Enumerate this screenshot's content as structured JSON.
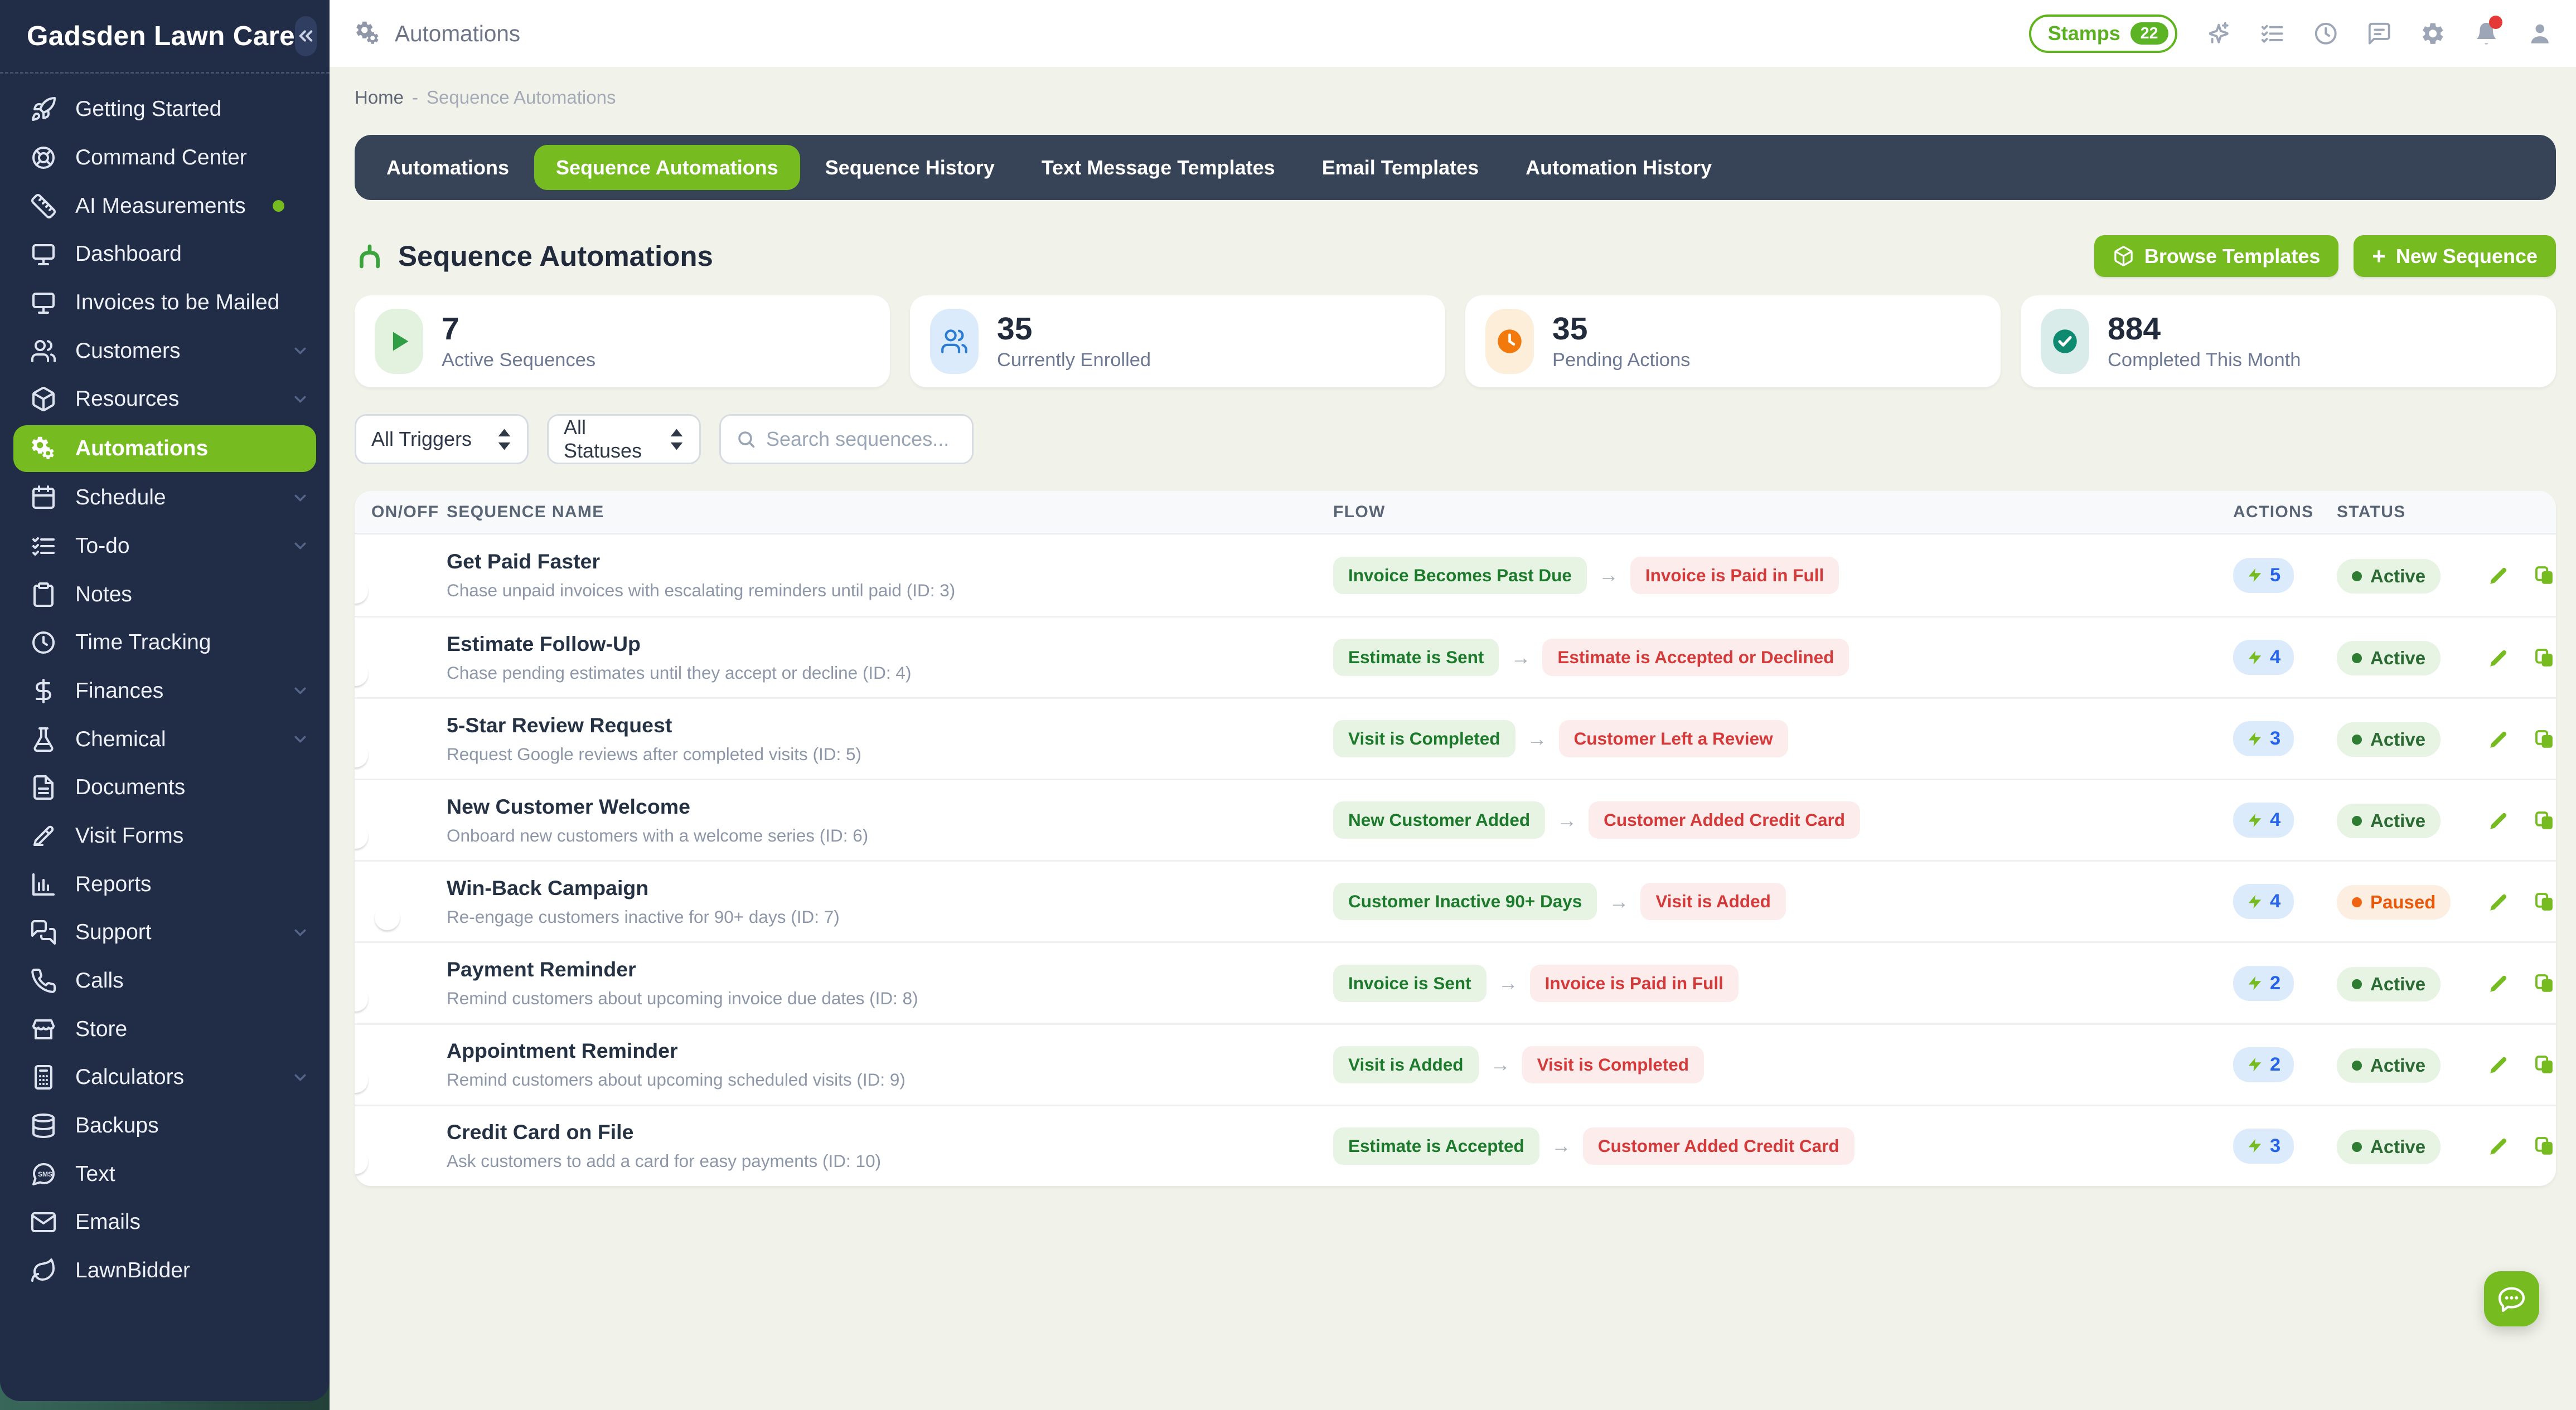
{
  "brand": {
    "name": "Gadsden Lawn Care"
  },
  "sidebar": {
    "items": [
      {
        "label": "Getting Started",
        "icon": "rocket-icon"
      },
      {
        "label": "Command Center",
        "icon": "lifebuoy-icon"
      },
      {
        "label": "AI Measurements",
        "icon": "ruler-icon",
        "dot": true
      },
      {
        "label": "Dashboard",
        "icon": "monitor-icon"
      },
      {
        "label": "Invoices to be Mailed",
        "icon": "monitor-icon"
      },
      {
        "label": "Customers",
        "icon": "users-icon",
        "chevron": true
      },
      {
        "label": "Resources",
        "icon": "box-icon",
        "chevron": true
      },
      {
        "label": "Automations",
        "icon": "gears-icon",
        "active": true
      },
      {
        "label": "Schedule",
        "icon": "calendar-icon",
        "chevron": true
      },
      {
        "label": "To-do",
        "icon": "checklist-icon",
        "chevron": true
      },
      {
        "label": "Notes",
        "icon": "clipboard-icon"
      },
      {
        "label": "Time Tracking",
        "icon": "clock-icon"
      },
      {
        "label": "Finances",
        "icon": "dollar-icon",
        "chevron": true
      },
      {
        "label": "Chemical",
        "icon": "flask-icon",
        "chevron": true
      },
      {
        "label": "Documents",
        "icon": "document-icon"
      },
      {
        "label": "Visit Forms",
        "icon": "visit-form-icon"
      },
      {
        "label": "Reports",
        "icon": "bar-chart-icon"
      },
      {
        "label": "Support",
        "icon": "support-chat-icon",
        "chevron": true
      },
      {
        "label": "Calls",
        "icon": "phone-icon"
      },
      {
        "label": "Store",
        "icon": "store-icon"
      },
      {
        "label": "Calculators",
        "icon": "calculator-icon",
        "chevron": true
      },
      {
        "label": "Backups",
        "icon": "database-icon"
      },
      {
        "label": "Text",
        "icon": "sms-icon"
      },
      {
        "label": "Emails",
        "icon": "envelope-icon"
      },
      {
        "label": "LawnBidder",
        "icon": "leaf-icon"
      }
    ]
  },
  "topbar": {
    "title": "Automations",
    "stamps": {
      "label": "Stamps",
      "count": "22"
    },
    "icons": [
      {
        "name": "sparkles-icon"
      },
      {
        "name": "checklist-icon"
      },
      {
        "name": "clock-icon"
      },
      {
        "name": "comment-icon"
      },
      {
        "name": "gear-icon"
      },
      {
        "name": "bell-icon",
        "badge": true
      },
      {
        "name": "user-icon"
      }
    ]
  },
  "breadcrumb": {
    "home": "Home",
    "separator": "-",
    "current": "Sequence Automations"
  },
  "tabs": [
    {
      "label": "Automations",
      "active": false
    },
    {
      "label": "Sequence Automations",
      "active": true
    },
    {
      "label": "Sequence History",
      "active": false
    },
    {
      "label": "Text Message Templates",
      "active": false
    },
    {
      "label": "Email Templates",
      "active": false
    },
    {
      "label": "Automation History",
      "active": false
    }
  ],
  "page": {
    "title": "Sequence Automations",
    "browse_templates_label": "Browse Templates",
    "new_sequence_plus": "+",
    "new_sequence_label": "New Sequence"
  },
  "stats": [
    {
      "value": "7",
      "label": "Active Sequences",
      "icon": "play-icon",
      "icon_color": "#2f9e44",
      "icon_bg": "#e3f2df"
    },
    {
      "value": "35",
      "label": "Currently Enrolled",
      "icon": "users-icon",
      "icon_color": "#2b7cd3",
      "icon_bg": "#dcebfb"
    },
    {
      "value": "35",
      "label": "Pending Actions",
      "icon": "clock-filled-icon",
      "icon_color": "#f2790c",
      "icon_bg": "#fdeeda"
    },
    {
      "value": "884",
      "label": "Completed This Month",
      "icon": "check-circle-icon",
      "icon_color": "#0e8a70",
      "icon_bg": "#d9ecea"
    }
  ],
  "filters": {
    "trigger_label": "All Triggers",
    "status_label": "All Statuses",
    "search_placeholder": "Search sequences..."
  },
  "table": {
    "headers": {
      "onoff": "ON/OFF",
      "name": "SEQUENCE NAME",
      "flow": "FLOW",
      "actions": "ACTIONS",
      "status": "STATUS"
    },
    "flow_arrow": "→",
    "rows": [
      {
        "enabled": true,
        "name": "Get Paid Faster",
        "desc": "Chase unpaid invoices with escalating reminders until paid (ID: 3)",
        "trigger": "Invoice Becomes Past Due",
        "exit": "Invoice is Paid in Full",
        "actions": "5",
        "status": "Active"
      },
      {
        "enabled": true,
        "name": "Estimate Follow-Up",
        "desc": "Chase pending estimates until they accept or decline (ID: 4)",
        "trigger": "Estimate is Sent",
        "exit": "Estimate is Accepted or Declined",
        "actions": "4",
        "status": "Active"
      },
      {
        "enabled": true,
        "name": "5-Star Review Request",
        "desc": "Request Google reviews after completed visits (ID: 5)",
        "trigger": "Visit is Completed",
        "exit": "Customer Left a Review",
        "actions": "3",
        "status": "Active"
      },
      {
        "enabled": true,
        "name": "New Customer Welcome",
        "desc": "Onboard new customers with a welcome series (ID: 6)",
        "trigger": "New Customer Added",
        "exit": "Customer Added Credit Card",
        "actions": "4",
        "status": "Active"
      },
      {
        "enabled": false,
        "name": "Win-Back Campaign",
        "desc": "Re-engage customers inactive for 90+ days (ID: 7)",
        "trigger": "Customer Inactive 90+ Days",
        "exit": "Visit is Added",
        "actions": "4",
        "status": "Paused"
      },
      {
        "enabled": true,
        "name": "Payment Reminder",
        "desc": "Remind customers about upcoming invoice due dates (ID: 8)",
        "trigger": "Invoice is Sent",
        "exit": "Invoice is Paid in Full",
        "actions": "2",
        "status": "Active"
      },
      {
        "enabled": true,
        "name": "Appointment Reminder",
        "desc": "Remind customers about upcoming scheduled visits (ID: 9)",
        "trigger": "Visit is Added",
        "exit": "Visit is Completed",
        "actions": "2",
        "status": "Active"
      },
      {
        "enabled": true,
        "name": "Credit Card on File",
        "desc": "Ask customers to add a card for easy payments (ID: 10)",
        "trigger": "Estimate is Accepted",
        "exit": "Customer Added Credit Card",
        "actions": "3",
        "status": "Active"
      }
    ]
  },
  "colors": {
    "brand_green": "#76bc21",
    "sidebar_bg": "#212c47",
    "tabbar_bg": "#374457",
    "content_bg": "#f1f2ea",
    "trigger_pill_bg": "#e7f3e3",
    "trigger_text": "#1d7a2c",
    "exit_pill_bg": "#fcecec",
    "exit_text": "#d43a3a",
    "actions_pill_bg": "#dcebfb",
    "actions_count": "#2563eb",
    "active_pill_bg": "#e7f3e3",
    "active_text": "#2b6a33",
    "paused_pill_bg": "#fcefe1",
    "paused_text": "#e8590c",
    "notification_red": "#e53935"
  },
  "fab": {
    "icon": "chat-bubble-icon"
  }
}
